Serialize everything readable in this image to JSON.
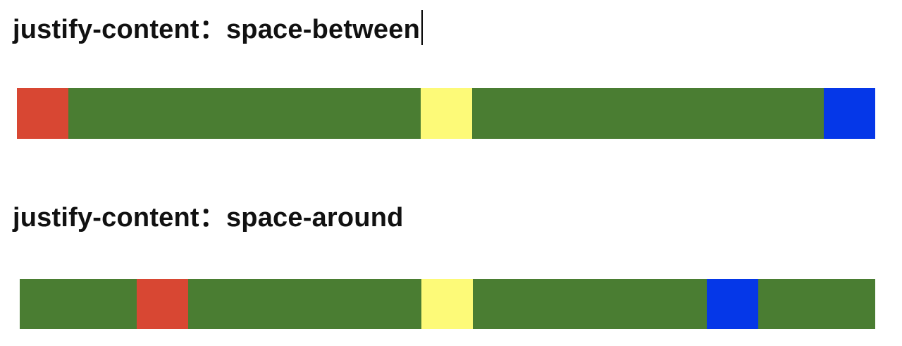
{
  "headings": [
    "justify-content：space-between",
    "justify-content：space-around"
  ],
  "colors": {
    "container": "#4a7d32",
    "red": "#d84733",
    "yellow": "#fdfa78",
    "blue": "#0537e8"
  },
  "rows": [
    {
      "justify": "space-between",
      "items": [
        "red",
        "yellow",
        "blue"
      ]
    },
    {
      "justify": "space-around",
      "items": [
        "red",
        "yellow",
        "blue"
      ]
    }
  ]
}
